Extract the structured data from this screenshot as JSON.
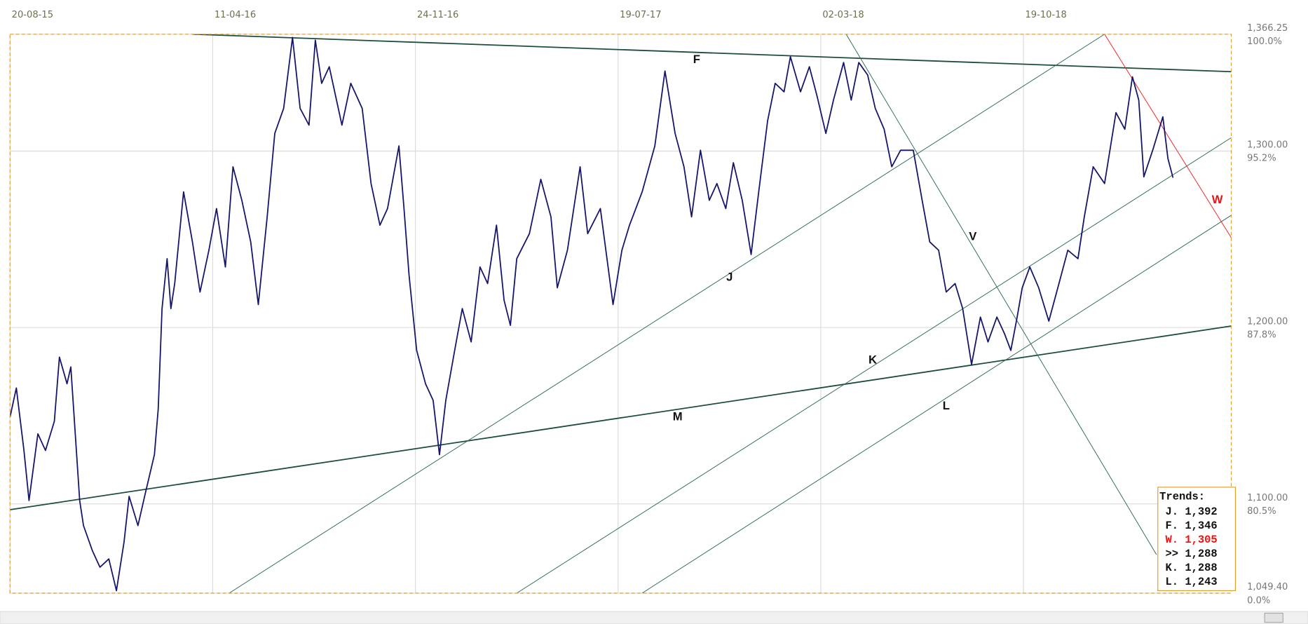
{
  "chart_data": {
    "type": "line",
    "xlim": [
      0,
      964
    ],
    "xticks": [
      {
        "value": 0,
        "label": "20-08-15"
      },
      {
        "value": 160,
        "label": "11-04-16"
      },
      {
        "value": 320,
        "label": "24-11-16"
      },
      {
        "value": 480,
        "label": "19-07-17"
      },
      {
        "value": 640,
        "label": "02-03-18"
      },
      {
        "value": 800,
        "label": "19-10-18"
      }
    ],
    "ylim": [
      1049.4,
      1366.25
    ],
    "yticks": [
      {
        "value": 1366.25,
        "label": "1,366.25"
      },
      {
        "value": 1300,
        "label": "1,300.00"
      },
      {
        "value": 1200,
        "label": "1,200.00"
      },
      {
        "value": 1100,
        "label": "1,100.00"
      },
      {
        "value": 1049.4,
        "label": "1,049.40"
      }
    ],
    "ytick_percent_labels": [
      "100.0%",
      "95.2%",
      "87.8%",
      "80.5%",
      "0.0%"
    ],
    "grid": true,
    "series": [
      {
        "color": "#15156a",
        "x": [
          0,
          5,
          11,
          15,
          22,
          28,
          35,
          39,
          45,
          48,
          55,
          58,
          65,
          71,
          78,
          84,
          90,
          94,
          101,
          107,
          114,
          117,
          120,
          124,
          127,
          130,
          137,
          144,
          150,
          157,
          163,
          170,
          176,
          183,
          190,
          196,
          203,
          209,
          216,
          223,
          229,
          236,
          241,
          246,
          252,
          262,
          269,
          278,
          285,
          292,
          298,
          307,
          311,
          315,
          321,
          328,
          334,
          339,
          344,
          351,
          357,
          364,
          371,
          377,
          384,
          390,
          395,
          400,
          410,
          419,
          427,
          432,
          440,
          450,
          456,
          466,
          476,
          483,
          489,
          499,
          509,
          517,
          525,
          532,
          538,
          545,
          552,
          558,
          565,
          571,
          578,
          585,
          591,
          598,
          604,
          611,
          616,
          624,
          631,
          637,
          644,
          650,
          658,
          664,
          670,
          677,
          683,
          690,
          696,
          703,
          713,
          720,
          726,
          733,
          739,
          746,
          752,
          759,
          766,
          772,
          779,
          785,
          790,
          795,
          799,
          805,
          812,
          820,
          828,
          835,
          843,
          848,
          855,
          864,
          873,
          880,
          886,
          891,
          895,
          902,
          910,
          914,
          918
        ],
        "values": [
          1149.2,
          1165.7,
          1130.3,
          1101.9,
          1139.7,
          1130.3,
          1146.8,
          1183.2,
          1168.1,
          1177.6,
          1101.9,
          1087.7,
          1073.5,
          1064.1,
          1068.8,
          1050.8,
          1078.3,
          1104.3,
          1087.7,
          1106.6,
          1127.9,
          1153.9,
          1210.7,
          1239.0,
          1210.7,
          1224.9,
          1276.9,
          1248.5,
          1220.1,
          1243.8,
          1267.4,
          1234.3,
          1291.1,
          1272.1,
          1248.5,
          1213.0,
          1262.7,
          1310.0,
          1324.2,
          1364.4,
          1324.2,
          1314.7,
          1362.9,
          1338.4,
          1347.8,
          1314.7,
          1338.4,
          1324.2,
          1281.6,
          1258.0,
          1267.4,
          1302.9,
          1267.4,
          1229.6,
          1187.0,
          1168.1,
          1158.7,
          1127.9,
          1158.7,
          1187.0,
          1210.7,
          1191.8,
          1234.3,
          1224.9,
          1258.0,
          1215.4,
          1201.2,
          1239.0,
          1253.2,
          1284.0,
          1262.7,
          1222.5,
          1243.8,
          1291.1,
          1253.2,
          1267.4,
          1213.0,
          1243.8,
          1258.0,
          1276.9,
          1302.9,
          1345.4,
          1310.0,
          1291.1,
          1262.7,
          1300.5,
          1272.1,
          1281.6,
          1267.4,
          1293.4,
          1272.1,
          1241.4,
          1276.9,
          1317.1,
          1338.4,
          1333.6,
          1353.5,
          1333.6,
          1347.8,
          1331.3,
          1310.0,
          1328.9,
          1350.2,
          1328.9,
          1350.2,
          1343.1,
          1324.2,
          1312.4,
          1291.1,
          1300.5,
          1300.5,
          1272.1,
          1248.5,
          1243.8,
          1220.1,
          1224.9,
          1210.7,
          1179.0,
          1205.9,
          1191.8,
          1205.9,
          1196.5,
          1187.0,
          1205.9,
          1222.5,
          1234.3,
          1222.5,
          1203.6,
          1224.9,
          1243.8,
          1239.0,
          1262.7,
          1291.1,
          1281.6,
          1321.8,
          1312.4,
          1342.1,
          1328.9,
          1285.4,
          1300.5,
          1319.4,
          1295.8,
          1284.9
        ]
      }
    ],
    "trendlines": [
      {
        "x": [
          144,
          964
        ],
        "y": [
          1366.25,
          1345.0
        ],
        "color": "#1d4d3e"
      },
      {
        "x": [
          0,
          964
        ],
        "y": [
          1096.7,
          1200.8
        ],
        "color": "#1d4d3e"
      },
      {
        "x": [
          173,
          864
        ],
        "y": [
          1049.4,
          1366.25
        ],
        "color": "#2e6a58"
      },
      {
        "x": [
          400,
          964
        ],
        "y": [
          1049.4,
          1307.6
        ],
        "color": "#2e6a58"
      },
      {
        "x": [
          499,
          964
        ],
        "y": [
          1049.4,
          1263.6
        ],
        "color": "#2e6a58"
      },
      {
        "x": [
          660,
          905
        ],
        "y": [
          1366.25,
          1071.2
        ],
        "color": "#2e6a58"
      },
      {
        "x": [
          864,
          964
        ],
        "y": [
          1366.25,
          1250.9
        ],
        "color": "#ee2222"
      }
    ],
    "annotations": [
      {
        "text": "F",
        "x": 542,
        "y": 1351.6,
        "color": "#111111"
      },
      {
        "text": "J",
        "x": 568,
        "y": 1228.2,
        "color": "#111111"
      },
      {
        "text": "V",
        "x": 760,
        "y": 1251.3,
        "color": "#111111"
      },
      {
        "text": "K",
        "x": 681,
        "y": 1181.4,
        "color": "#111111"
      },
      {
        "text": "L",
        "x": 739,
        "y": 1155.3,
        "color": "#111111"
      },
      {
        "text": "M",
        "x": 527,
        "y": 1149.2,
        "color": "#111111"
      },
      {
        "text": "W",
        "x": 953,
        "y": 1272.1,
        "color": "#ee1111"
      }
    ],
    "trends_box": {
      "title": "Trends:",
      "rows": [
        {
          "text": "J. 1,392",
          "color": "#111111"
        },
        {
          "text": "F. 1,346",
          "color": "#111111"
        },
        {
          "text": "W. 1,305",
          "color": "#ee1111"
        },
        {
          "text": ">> 1,288",
          "color": "#111111"
        },
        {
          "text": "K. 1,288",
          "color": "#111111"
        },
        {
          "text": "L. 1,243",
          "color": "#111111"
        }
      ]
    }
  }
}
